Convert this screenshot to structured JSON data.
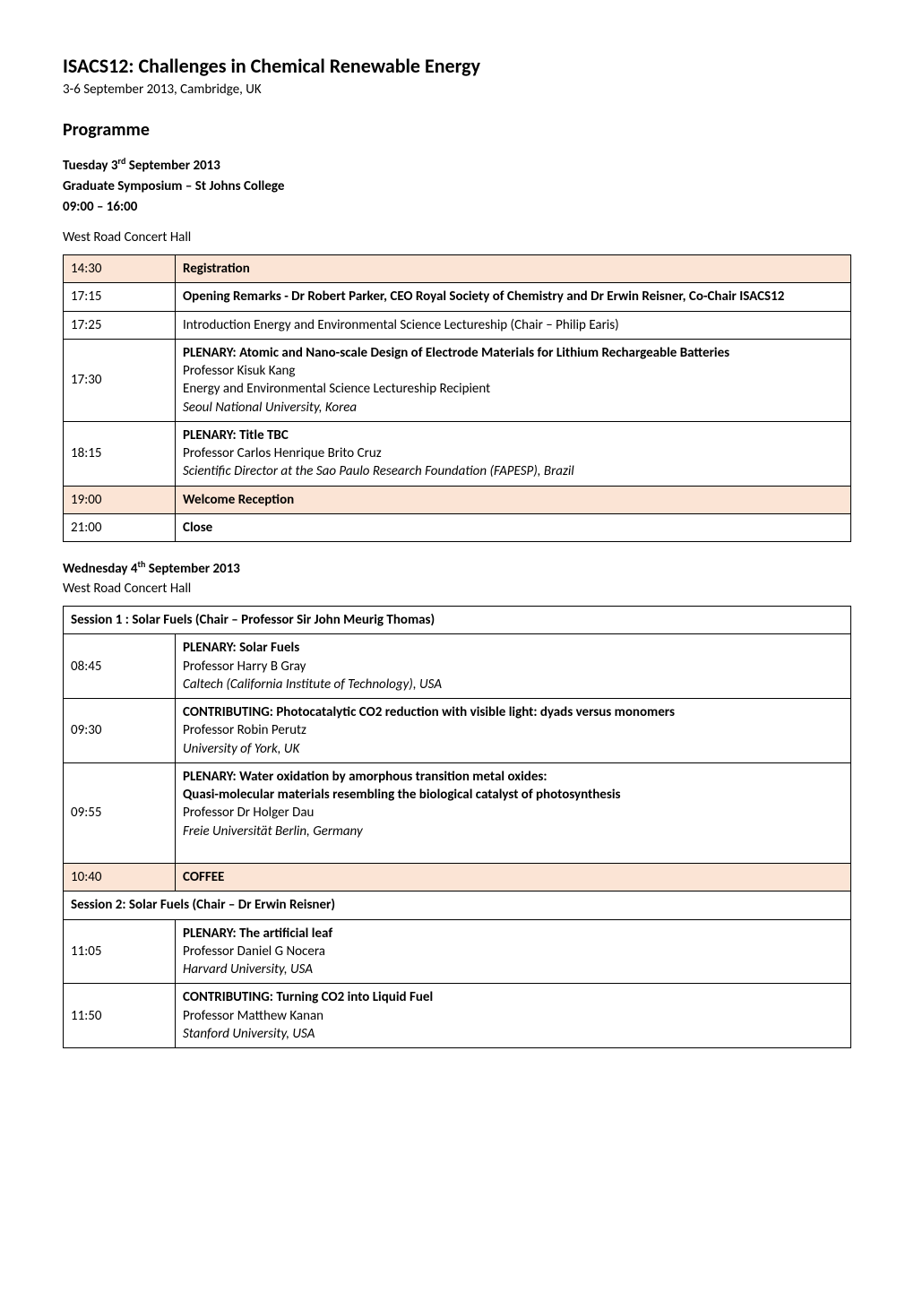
{
  "title": "ISACS12: Challenges in Chemical Renewable Energy",
  "date_location": "3-6 September 2013, Cambridge, UK",
  "programme_heading": "Programme",
  "day1": {
    "date_line1": "Tuesday 3",
    "date_sup": "rd",
    "date_line1b": " September 2013",
    "line2": "Graduate Symposium – St Johns College",
    "line3": "09:00 – 16:00",
    "venue": "West Road Concert Hall"
  },
  "table1": {
    "rows": [
      {
        "time": "14:30",
        "highlighted": true,
        "content": [
          {
            "text": "Registration",
            "bold": true
          }
        ]
      },
      {
        "time": "17:15",
        "content": [
          {
            "text": "Opening Remarks - Dr Robert Parker, CEO Royal Society of Chemistry and Dr Erwin Reisner, Co-Chair ISACS12",
            "bold": true
          }
        ]
      },
      {
        "time": "17:25",
        "content": [
          {
            "text": "Introduction Energy and Environmental Science Lectureship (Chair – Philip Earis)"
          }
        ]
      },
      {
        "time": "17:30",
        "content": [
          {
            "text": "PLENARY: Atomic and Nano-scale Design of Electrode Materials for Lithium Rechargeable Batteries",
            "bold": true
          },
          {
            "text": "Professor Kisuk Kang"
          },
          {
            "text": "Energy and Environmental Science Lectureship Recipient"
          },
          {
            "text": "Seoul National University, Korea",
            "italic": true
          }
        ]
      },
      {
        "time": "18:15",
        "content": [
          {
            "text": "PLENARY: Title TBC",
            "bold": true
          },
          {
            "text": "Professor Carlos Henrique Brito Cruz"
          },
          {
            "text": "Scientific Director at the Sao Paulo Research Foundation (FAPESP), Brazil",
            "italic": true
          }
        ]
      },
      {
        "time": "19:00",
        "highlighted": true,
        "content": [
          {
            "text": "Welcome Reception",
            "bold": true
          }
        ]
      },
      {
        "time": "21:00",
        "content": [
          {
            "text": "Close",
            "bold": true
          }
        ]
      }
    ]
  },
  "day2": {
    "date_line1": "Wednesday 4",
    "date_sup": "th",
    "date_line1b": " September 2013",
    "venue": "West Road Concert Hall"
  },
  "table2": {
    "session1_header": "Session 1 : Solar Fuels (Chair – Professor Sir John Meurig Thomas)",
    "session1_rows": [
      {
        "time": "08:45",
        "content": [
          {
            "text": "PLENARY: Solar Fuels",
            "bold": true
          },
          {
            "text": "Professor Harry B Gray"
          },
          {
            "text": "Caltech (California Institute of Technology), USA",
            "italic": true
          }
        ]
      },
      {
        "time": "09:30",
        "content": [
          {
            "text": "CONTRIBUTING: Photocatalytic CO2 reduction with visible light: dyads versus monomers",
            "bold": true
          },
          {
            "text": "Professor Robin Perutz"
          },
          {
            "text": "University of York, UK",
            "italic": true
          }
        ]
      },
      {
        "time": "09:55",
        "content": [
          {
            "text": "PLENARY: Water oxidation by amorphous transition metal oxides:",
            "bold": true
          },
          {
            "text": "Quasi-molecular materials resembling the biological catalyst of photosynthesis",
            "bold": true
          },
          {
            "text": "Professor Dr Holger Dau"
          },
          {
            "text": "Freie Universität Berlin, Germany",
            "italic": true
          },
          {
            "text": " "
          }
        ]
      },
      {
        "time": "10:40",
        "highlighted": true,
        "content": [
          {
            "text": "COFFEE",
            "bold": true
          }
        ]
      }
    ],
    "session2_header": "Session 2:  Solar Fuels  (Chair – Dr Erwin Reisner)",
    "session2_rows": [
      {
        "time": "11:05",
        "content": [
          {
            "text": "PLENARY: The artificial leaf",
            "bold": true
          },
          {
            "text": "Professor Daniel G Nocera"
          },
          {
            "text": "Harvard University, USA",
            "italic": true
          }
        ]
      },
      {
        "time": "11:50",
        "content": [
          {
            "text": "CONTRIBUTING: Turning CO2 into Liquid Fuel",
            "bold": true
          },
          {
            "text": "Professor Matthew Kanan"
          },
          {
            "text": "Stanford University, USA",
            "italic": true
          }
        ]
      }
    ]
  },
  "colors": {
    "highlight_bg": "#fbe4d5",
    "border": "#000000",
    "text": "#000000",
    "page_bg": "#ffffff"
  }
}
